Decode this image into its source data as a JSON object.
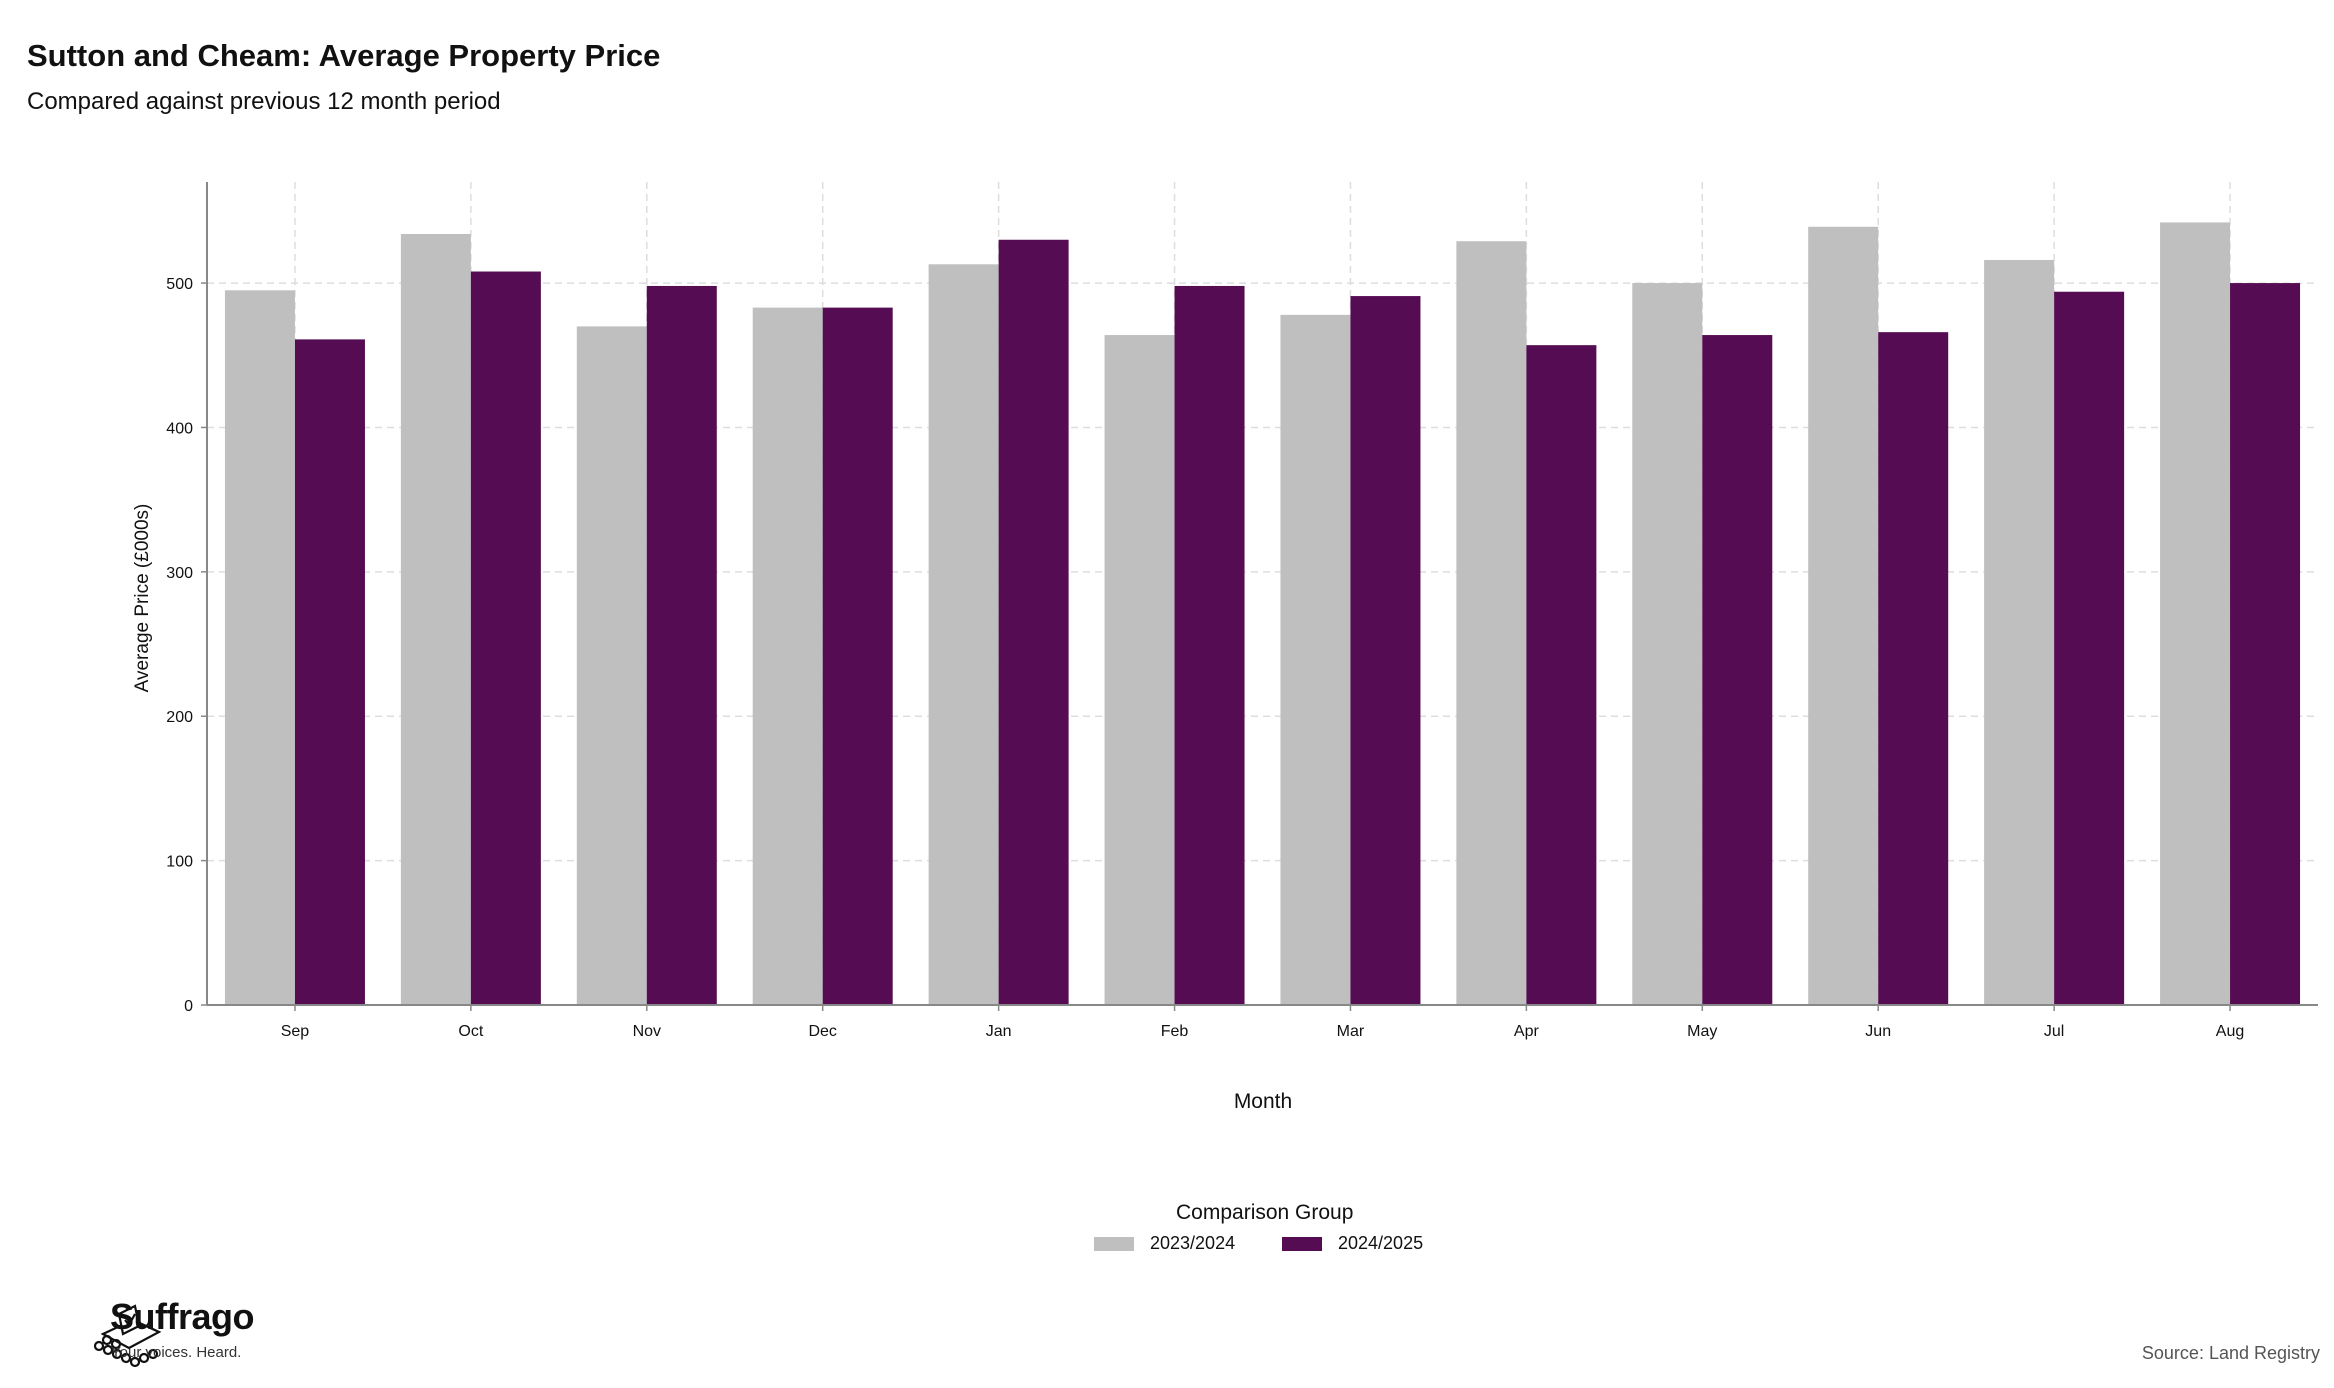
{
  "header": {
    "title": "Sutton and Cheam: Average Property Price",
    "subtitle": "Compared against previous 12 month period"
  },
  "colors": {
    "series_2023_2024": "#bfbfbf",
    "series_2024_2025": "#560c53",
    "grid": "#dddddd",
    "axis": "#888888"
  },
  "chart_data": {
    "type": "bar",
    "title": "Sutton and Cheam: Average Property Price",
    "subtitle": "Compared against previous 12 month period",
    "xlabel": "Month",
    "ylabel": "Average Price (£000s)",
    "ylim": [
      0,
      570
    ],
    "yticks": [
      0,
      100,
      200,
      300,
      400,
      500
    ],
    "grid": true,
    "legend_title": "Comparison Group",
    "legend_position": "bottom",
    "categories": [
      "Sep",
      "Oct",
      "Nov",
      "Dec",
      "Jan",
      "Feb",
      "Mar",
      "Apr",
      "May",
      "Jun",
      "Jul",
      "Aug"
    ],
    "series": [
      {
        "name": "2023/2024",
        "color": "#bfbfbf",
        "values": [
          495,
          534,
          470,
          483,
          513,
          464,
          478,
          529,
          500,
          539,
          516,
          542
        ]
      },
      {
        "name": "2024/2025",
        "color": "#560c53",
        "values": [
          461,
          508,
          498,
          483,
          530,
          498,
          491,
          457,
          464,
          466,
          494,
          500
        ]
      }
    ]
  },
  "footer": {
    "brand_name": "Suffrago",
    "tagline": "Your voices. Heard.",
    "source": "Source: Land Registry"
  }
}
